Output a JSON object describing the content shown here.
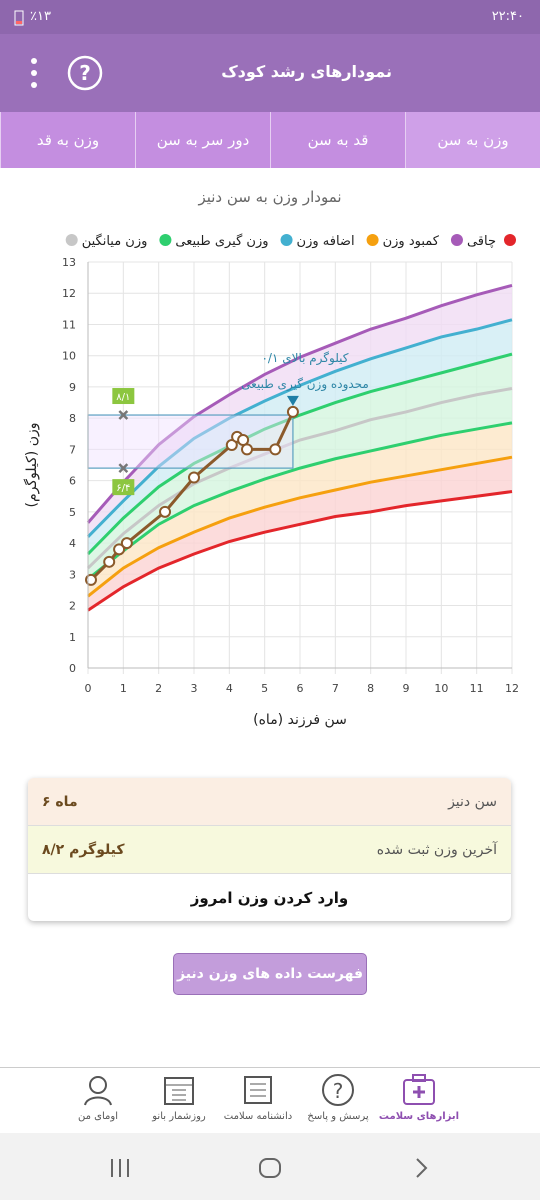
{
  "status_bar": {
    "time": "۲۲:۴۰",
    "battery": "٪۱۳"
  },
  "app_bar": {
    "title": "نمودارهای رشد کودک"
  },
  "tabs": [
    "وزن به سن",
    "قد به سن",
    "دور سر به سن",
    "وزن به قد"
  ],
  "chart_data": {
    "type": "line",
    "title": "نمودار وزن به سن دنیز",
    "x_label": "سن فرزند (ماه)",
    "y_label": "وزن (کیلوگرم)",
    "xlim": [
      0,
      12
    ],
    "ylim": [
      0,
      13
    ],
    "xticks": [
      0,
      1,
      2,
      3,
      4,
      5,
      6,
      7,
      8,
      9,
      10,
      11,
      12
    ],
    "yticks": [
      0,
      1,
      2,
      3,
      4,
      5,
      6,
      7,
      8,
      9,
      10,
      11,
      12,
      13
    ],
    "grid": true,
    "legend": [
      {
        "color": "#e3262b"
      },
      {
        "name": "چاقی",
        "color": "#a65bb8"
      },
      {
        "name": "کمبود وزن",
        "color": "#f5a00f"
      },
      {
        "name": "اضافه وزن",
        "color": "#43b0d0"
      },
      {
        "name": "وزن گیری طبیعی",
        "color": "#2ecf6f"
      },
      {
        "name": "وزن میانگین",
        "color": "#c7c7c7"
      }
    ],
    "x": [
      0,
      1,
      2,
      3,
      4,
      5,
      6,
      7,
      8,
      9,
      10,
      11,
      12
    ],
    "series": [
      {
        "color": "#e3262b",
        "values": [
          1.85,
          2.6,
          3.2,
          3.65,
          4.05,
          4.35,
          4.6,
          4.85,
          5.0,
          5.2,
          5.35,
          5.5,
          5.65
        ]
      },
      {
        "color": "#f5a00f",
        "values": [
          2.3,
          3.2,
          3.85,
          4.35,
          4.8,
          5.15,
          5.45,
          5.7,
          5.95,
          6.15,
          6.35,
          6.55,
          6.75
        ]
      },
      {
        "color": "#2ecf6f",
        "values": [
          2.85,
          3.75,
          4.6,
          5.2,
          5.65,
          6.05,
          6.4,
          6.7,
          6.95,
          7.2,
          7.45,
          7.65,
          7.85
        ]
      },
      {
        "color": "#c7c7c7",
        "values": [
          3.2,
          4.3,
          5.2,
          5.9,
          6.4,
          6.85,
          7.3,
          7.6,
          7.95,
          8.2,
          8.5,
          8.75,
          8.95
        ]
      },
      {
        "color": "#2ecf6f",
        "values": [
          3.65,
          4.8,
          5.8,
          6.55,
          7.1,
          7.65,
          8.1,
          8.5,
          8.85,
          9.15,
          9.45,
          9.75,
          10.05
        ]
      },
      {
        "color": "#43b0d0",
        "values": [
          4.2,
          5.35,
          6.45,
          7.35,
          8.0,
          8.55,
          9.05,
          9.5,
          9.9,
          10.25,
          10.6,
          10.85,
          11.15
        ]
      },
      {
        "color": "#a65bb8",
        "values": [
          4.65,
          5.95,
          7.15,
          8.05,
          8.75,
          9.4,
          9.95,
          10.4,
          10.85,
          11.2,
          11.6,
          11.95,
          12.25
        ]
      }
    ],
    "band_colors": [
      "#fbd3d3",
      "#fde6c6",
      "#d4f5df",
      "#d4f5df",
      "#cfecf4",
      "#f0dcf4"
    ],
    "child": {
      "color": "#8b5a2b",
      "x": [
        0.085,
        0.6,
        0.88,
        1.1,
        2.18,
        3.0,
        4.07,
        4.22,
        4.39,
        4.5,
        5.3,
        5.8
      ],
      "values": [
        2.82,
        3.4,
        3.8,
        4.0,
        5.0,
        6.1,
        7.14,
        7.4,
        7.3,
        7.0,
        7.0,
        8.2
      ]
    },
    "markers": [
      {
        "x": 1,
        "y": 8.1,
        "label": "۸/۱"
      },
      {
        "x": 1,
        "y": 6.4,
        "label": "۶/۴"
      }
    ],
    "annotation": [
      "۰/۱ کیلوگرم بالای",
      "محدوده وزن گیری طبیعی"
    ]
  },
  "info_card": {
    "rows": [
      {
        "label": "سن دنیز",
        "value": "۶ ماه"
      },
      {
        "label": "آخرین وزن ثبت شده",
        "value": "۸/۲ کیلوگرم"
      }
    ],
    "action": "وارد کردن وزن امروز"
  },
  "list_button": "فهرست داده های وزن دنیز",
  "bottom_nav": [
    "ابزارهای سلامت",
    "پرسش و پاسخ",
    "دانشنامه سلامت",
    "روزشمار بانو",
    "اومای من"
  ]
}
